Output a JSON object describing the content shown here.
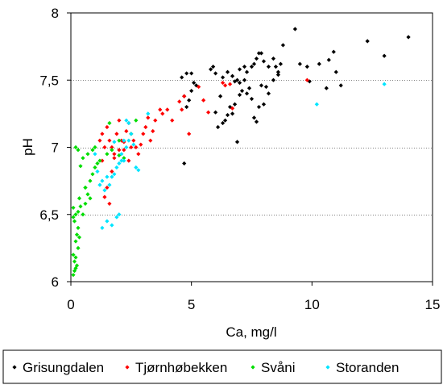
{
  "chart_data": {
    "type": "scatter",
    "xlabel": "Ca, mg/l",
    "ylabel": "pH",
    "xlim": [
      0,
      15
    ],
    "ylim": [
      6,
      8
    ],
    "x_ticks": [
      0,
      5,
      10,
      15
    ],
    "y_ticks": [
      6,
      6.5,
      7,
      7.5,
      8
    ],
    "x_tick_labels": [
      "0",
      "5",
      "10",
      "15"
    ],
    "y_tick_labels": [
      "6",
      "6,5",
      "7",
      "7,5",
      "8"
    ],
    "grid": "horizontal dotted",
    "legend_position": "bottom",
    "series": [
      {
        "name": "Grisungdalen",
        "color": "#000000",
        "points": [
          [
            4.6,
            7.52
          ],
          [
            4.8,
            7.55
          ],
          [
            5.0,
            7.55
          ],
          [
            5.1,
            7.48
          ],
          [
            5.2,
            7.46
          ],
          [
            4.7,
            7.38
          ],
          [
            4.8,
            7.3
          ],
          [
            4.9,
            7.35
          ],
          [
            5.0,
            7.42
          ],
          [
            4.7,
            6.88
          ],
          [
            5.8,
            7.58
          ],
          [
            5.9,
            7.6
          ],
          [
            6.0,
            7.55
          ],
          [
            6.3,
            7.52
          ],
          [
            6.5,
            7.56
          ],
          [
            6.7,
            7.53
          ],
          [
            6.8,
            7.49
          ],
          [
            6.9,
            7.5
          ],
          [
            7.0,
            7.58
          ],
          [
            7.2,
            7.6
          ],
          [
            7.3,
            7.56
          ],
          [
            7.5,
            7.6
          ],
          [
            7.6,
            7.62
          ],
          [
            7.7,
            7.66
          ],
          [
            7.8,
            7.7
          ],
          [
            7.9,
            7.7
          ],
          [
            8.0,
            7.64
          ],
          [
            8.2,
            7.6
          ],
          [
            8.4,
            7.66
          ],
          [
            8.5,
            7.6
          ],
          [
            8.6,
            7.56
          ],
          [
            8.7,
            7.62
          ],
          [
            8.8,
            7.76
          ],
          [
            9.3,
            7.88
          ],
          [
            9.5,
            7.62
          ],
          [
            9.8,
            7.6
          ],
          [
            9.9,
            7.49
          ],
          [
            10.3,
            7.62
          ],
          [
            10.6,
            7.44
          ],
          [
            10.7,
            7.65
          ],
          [
            10.9,
            7.71
          ],
          [
            11.0,
            7.56
          ],
          [
            11.2,
            7.46
          ],
          [
            12.3,
            7.79
          ],
          [
            13.0,
            7.68
          ],
          [
            14.0,
            7.82
          ],
          [
            6.2,
            7.38
          ],
          [
            6.4,
            7.2
          ],
          [
            6.5,
            7.24
          ],
          [
            6.6,
            7.3
          ],
          [
            6.7,
            7.25
          ],
          [
            6.8,
            7.32
          ],
          [
            7.0,
            7.39
          ],
          [
            7.1,
            7.42
          ],
          [
            7.2,
            7.5
          ],
          [
            7.4,
            7.44
          ],
          [
            7.5,
            7.36
          ],
          [
            7.6,
            7.22
          ],
          [
            7.7,
            7.19
          ],
          [
            7.8,
            7.3
          ],
          [
            8.0,
            7.32
          ],
          [
            8.2,
            7.4
          ],
          [
            8.4,
            7.5
          ],
          [
            8.6,
            7.54
          ],
          [
            6.1,
            7.15
          ],
          [
            6.3,
            7.18
          ],
          [
            6.0,
            7.26
          ],
          [
            6.9,
            7.04
          ],
          [
            7.0,
            7.48
          ],
          [
            7.3,
            7.4
          ],
          [
            7.9,
            7.46
          ],
          [
            8.1,
            7.45
          ]
        ]
      },
      {
        "name": "Tjørnhøbekken",
        "color": "#ff0000",
        "points": [
          [
            1.2,
            7.05
          ],
          [
            1.3,
            7.1
          ],
          [
            1.4,
            7.0
          ],
          [
            1.5,
            7.15
          ],
          [
            1.6,
            7.05
          ],
          [
            1.7,
            7.0
          ],
          [
            1.8,
            6.95
          ],
          [
            1.9,
            7.1
          ],
          [
            2.0,
            7.2
          ],
          [
            2.1,
            7.05
          ],
          [
            2.2,
            6.98
          ],
          [
            2.3,
            7.12
          ],
          [
            2.4,
            7.18
          ],
          [
            2.5,
            7.1
          ],
          [
            2.6,
            7.05
          ],
          [
            2.7,
            7.0
          ],
          [
            2.8,
            6.95
          ],
          [
            2.9,
            7.02
          ],
          [
            3.0,
            7.1
          ],
          [
            3.1,
            7.15
          ],
          [
            3.2,
            7.22
          ],
          [
            3.3,
            7.05
          ],
          [
            3.4,
            7.12
          ],
          [
            3.5,
            7.2
          ],
          [
            3.7,
            7.28
          ],
          [
            3.8,
            7.25
          ],
          [
            4.0,
            7.28
          ],
          [
            4.2,
            7.2
          ],
          [
            4.5,
            7.34
          ],
          [
            4.6,
            7.28
          ],
          [
            4.7,
            7.38
          ],
          [
            4.9,
            7.1
          ],
          [
            5.3,
            7.45
          ],
          [
            5.5,
            7.35
          ],
          [
            5.7,
            7.26
          ],
          [
            6.3,
            7.48
          ],
          [
            6.4,
            7.46
          ],
          [
            6.6,
            7.47
          ],
          [
            6.7,
            7.29
          ],
          [
            9.8,
            7.5
          ],
          [
            1.4,
            6.63
          ],
          [
            1.5,
            6.7
          ],
          [
            1.6,
            6.58
          ],
          [
            1.7,
            6.82
          ],
          [
            1.8,
            6.92
          ],
          [
            2.0,
            6.98
          ],
          [
            2.2,
            7.04
          ],
          [
            2.4,
            6.9
          ],
          [
            2.5,
            7.0
          ],
          [
            1.3,
            6.9
          ]
        ]
      },
      {
        "name": "Svåni",
        "color": "#00dd00",
        "points": [
          [
            0.1,
            6.05
          ],
          [
            0.15,
            6.08
          ],
          [
            0.2,
            6.1
          ],
          [
            0.25,
            6.12
          ],
          [
            0.15,
            6.15
          ],
          [
            0.2,
            6.18
          ],
          [
            0.1,
            6.2
          ],
          [
            0.3,
            6.25
          ],
          [
            0.2,
            6.3
          ],
          [
            0.35,
            6.33
          ],
          [
            0.25,
            6.35
          ],
          [
            0.3,
            6.4
          ],
          [
            0.15,
            6.45
          ],
          [
            0.1,
            6.48
          ],
          [
            0.2,
            6.5
          ],
          [
            0.3,
            6.52
          ],
          [
            0.1,
            6.55
          ],
          [
            0.4,
            6.56
          ],
          [
            0.5,
            6.5
          ],
          [
            0.6,
            6.58
          ],
          [
            0.7,
            6.65
          ],
          [
            0.6,
            6.7
          ],
          [
            0.8,
            6.75
          ],
          [
            0.9,
            6.8
          ],
          [
            1.0,
            6.85
          ],
          [
            1.1,
            6.88
          ],
          [
            1.2,
            6.9
          ],
          [
            0.4,
            6.86
          ],
          [
            0.5,
            6.92
          ],
          [
            0.7,
            6.95
          ],
          [
            0.3,
            6.98
          ],
          [
            0.2,
            7.0
          ],
          [
            0.9,
            6.98
          ],
          [
            1.0,
            7.0
          ],
          [
            1.5,
            6.95
          ],
          [
            1.7,
            6.98
          ],
          [
            2.0,
            7.05
          ],
          [
            2.2,
            6.92
          ],
          [
            2.5,
            7.1
          ],
          [
            2.7,
            7.2
          ],
          [
            1.6,
            7.18
          ],
          [
            2.0,
            6.94
          ],
          [
            0.6,
            6.7
          ],
          [
            0.8,
            6.62
          ],
          [
            0.35,
            6.62
          ]
        ]
      },
      {
        "name": "Storanden",
        "color": "#00e5ff",
        "points": [
          [
            1.3,
            6.4
          ],
          [
            1.5,
            6.45
          ],
          [
            1.7,
            6.42
          ],
          [
            1.9,
            6.48
          ],
          [
            2.0,
            6.5
          ],
          [
            1.2,
            6.72
          ],
          [
            1.3,
            6.75
          ],
          [
            1.4,
            6.68
          ],
          [
            1.5,
            6.78
          ],
          [
            1.6,
            6.72
          ],
          [
            1.7,
            6.78
          ],
          [
            1.8,
            6.8
          ],
          [
            1.9,
            6.85
          ],
          [
            2.0,
            6.88
          ],
          [
            2.1,
            6.95
          ],
          [
            2.2,
            6.9
          ],
          [
            2.3,
            7.0
          ],
          [
            2.4,
            7.05
          ],
          [
            2.5,
            7.1
          ],
          [
            2.6,
            7.02
          ],
          [
            2.7,
            6.85
          ],
          [
            2.8,
            6.83
          ],
          [
            2.3,
            7.2
          ],
          [
            2.4,
            7.18
          ],
          [
            2.2,
            7.05
          ],
          [
            1.8,
            7.04
          ],
          [
            2.1,
            6.9
          ],
          [
            3.2,
            7.25
          ],
          [
            10.2,
            7.32
          ],
          [
            13.0,
            7.47
          ],
          [
            1.0,
            6.95
          ],
          [
            1.1,
            6.82
          ]
        ]
      }
    ]
  }
}
